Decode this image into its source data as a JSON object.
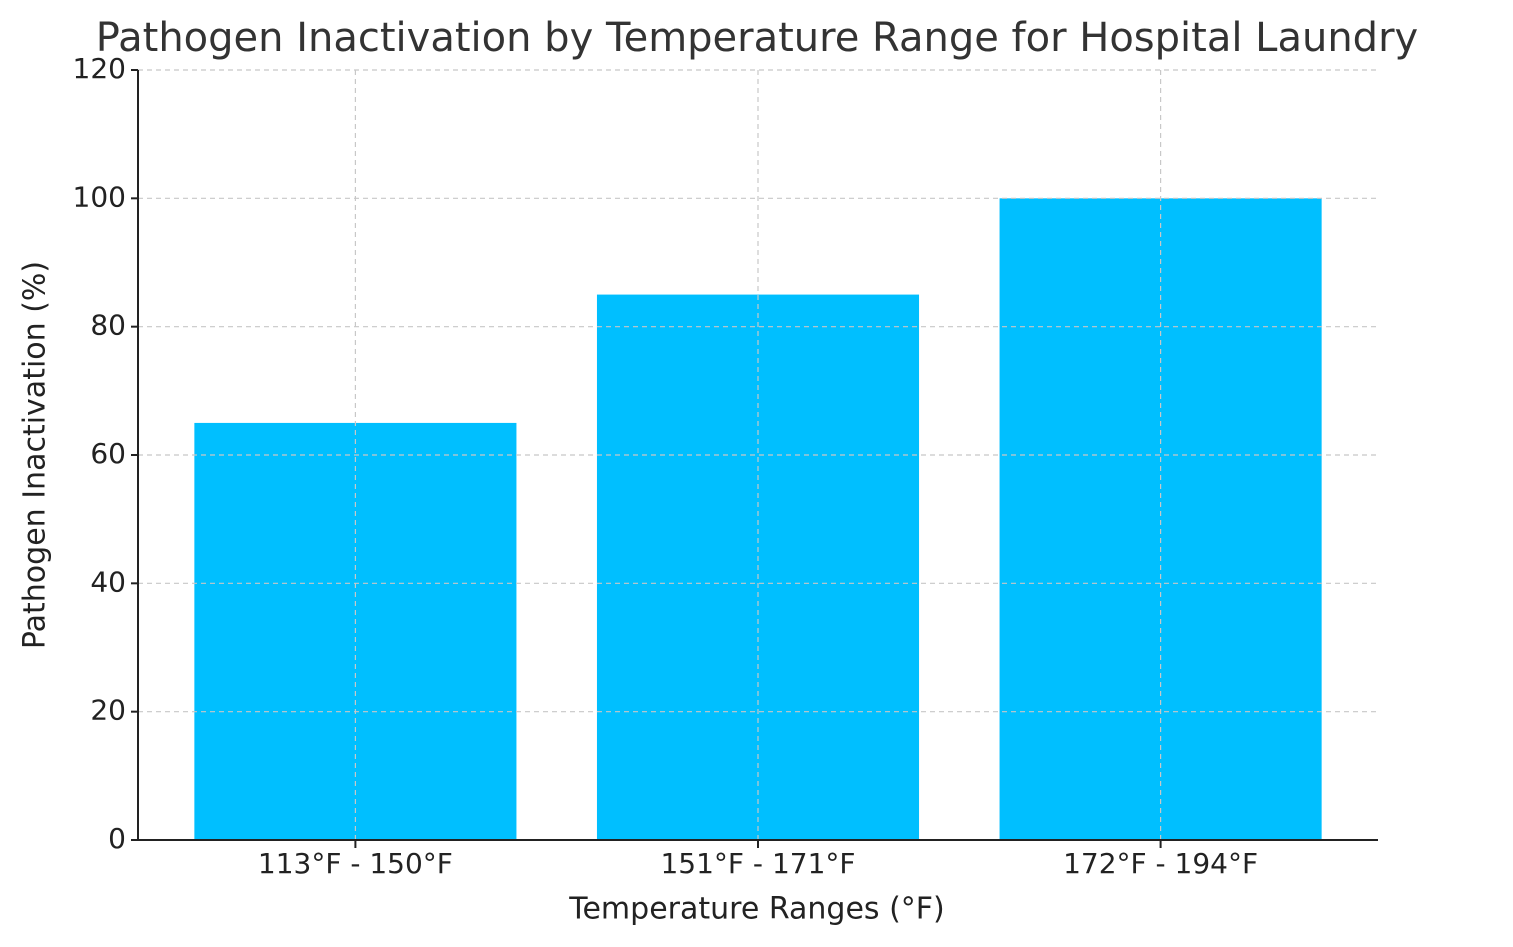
{
  "chart_data": {
    "type": "bar",
    "title": "Pathogen Inactivation by Temperature Range for Hospital Laundry",
    "x_label": "Temperature Ranges (°F)",
    "y_label": "Pathogen Inactivation (%)",
    "categories": [
      "113°F - 150°F",
      "151°F - 171°F",
      "172°F - 194°F"
    ],
    "values": [
      65,
      85,
      100
    ],
    "color": "#00bfff",
    "ylim": [
      0,
      120
    ],
    "yticks": [
      0,
      20,
      40,
      60,
      80,
      100,
      120
    ],
    "grid": true
  }
}
